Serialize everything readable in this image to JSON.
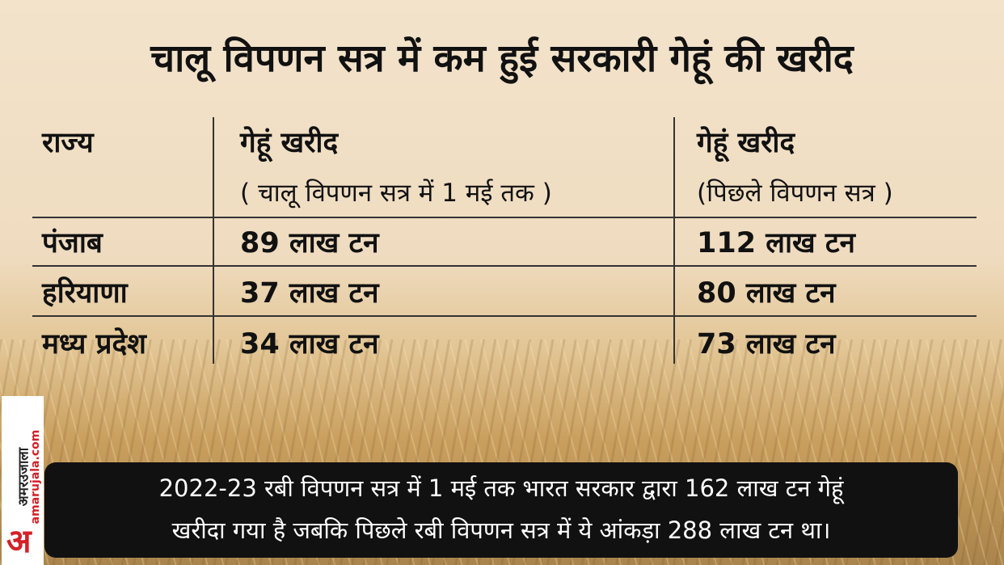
{
  "title": "चालू विपणन सत्र में कम हुई सरकारी गेहूं की खरीद",
  "table": {
    "headers": [
      {
        "lines": [
          "राज्य"
        ]
      },
      {
        "lines": [
          "गेहूं खरीद",
          "( चालू विपणन सत्र में 1 मई तक )"
        ]
      },
      {
        "lines": [
          "गेहूं खरीद",
          "(पिछले विपणन सत्र )"
        ]
      }
    ],
    "rows": [
      [
        "पंजाब",
        "89 लाख टन",
        "112 लाख टन"
      ],
      [
        "हरियाणा",
        "37 लाख टन",
        "80 लाख टन"
      ],
      [
        "मध्य प्रदेश",
        "34 लाख टन",
        "73 लाख टन"
      ]
    ]
  },
  "footer": {
    "lines": [
      "2022-23 रबी विपणन सत्र में 1 मई तक भारत सरकार द्वारा 162 लाख टन गेहूं",
      "खरीदा गया है जबकि पिछले रबी विपणन सत्र में ये आंकड़ा 288 लाख टन था।"
    ]
  },
  "logo": {
    "mark": "अ",
    "brand": "अमरउजाला",
    "site": "amarujala.com"
  }
}
